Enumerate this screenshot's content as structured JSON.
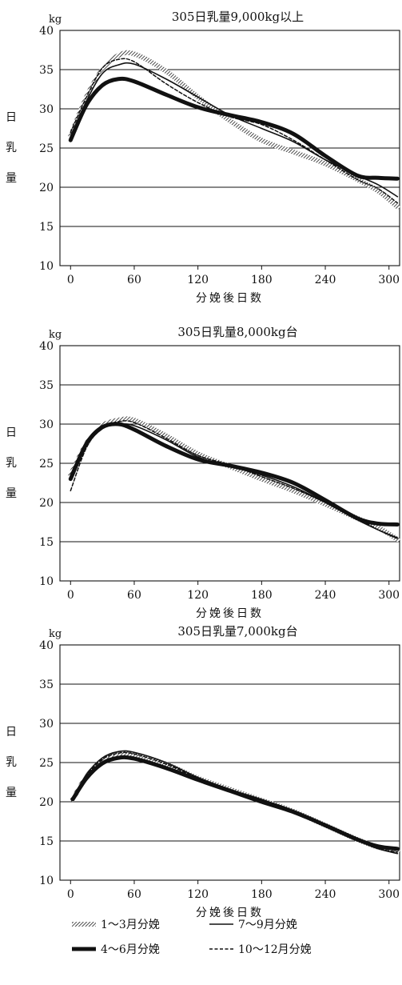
{
  "chart_data": [
    {
      "type": "line",
      "title": "305日乳量9,000kg以上",
      "unit": "kg",
      "ylabel": "日乳量",
      "xlabel": "分娩後日数",
      "x_unit": "日",
      "xlim": [
        -10,
        310
      ],
      "ylim": [
        10,
        40
      ],
      "x_ticks": [
        0,
        60,
        120,
        180,
        240,
        300
      ],
      "y_ticks": [
        10,
        15,
        20,
        25,
        30,
        35,
        40
      ],
      "grid": "horizontal",
      "series": [
        {
          "name": "1～3月分娩",
          "style": "hatched",
          "x": [
            0,
            15,
            30,
            45,
            60,
            90,
            120,
            150,
            180,
            210,
            240,
            270,
            290,
            308
          ],
          "y": [
            26.5,
            31.5,
            35.0,
            36.8,
            37.0,
            34.8,
            31.5,
            28.5,
            26.0,
            24.5,
            23.0,
            21.0,
            19.5,
            17.5
          ]
        },
        {
          "name": "4～6月分娩",
          "style": "thick",
          "x": [
            0,
            15,
            30,
            45,
            60,
            90,
            120,
            150,
            180,
            210,
            240,
            270,
            290,
            308
          ],
          "y": [
            26.0,
            30.5,
            33.0,
            33.8,
            33.5,
            31.8,
            30.2,
            29.2,
            28.3,
            26.8,
            24.0,
            21.5,
            21.2,
            21.1
          ]
        },
        {
          "name": "7～9月分娩",
          "style": "solid",
          "x": [
            0,
            15,
            30,
            45,
            60,
            90,
            120,
            150,
            180,
            210,
            240,
            270,
            290,
            308
          ],
          "y": [
            26.5,
            31.0,
            34.5,
            35.6,
            35.7,
            33.8,
            31.5,
            29.2,
            27.5,
            25.8,
            23.5,
            21.5,
            20.3,
            18.8
          ]
        },
        {
          "name": "10～12月分娩",
          "style": "dashed",
          "x": [
            0,
            15,
            30,
            45,
            60,
            90,
            120,
            150,
            180,
            210,
            240,
            270,
            290,
            308
          ],
          "y": [
            27.0,
            31.5,
            35.2,
            36.3,
            36.0,
            33.2,
            30.8,
            29.0,
            28.0,
            26.0,
            23.5,
            21.0,
            19.8,
            18.0
          ]
        }
      ]
    },
    {
      "type": "line",
      "title": "305日乳量8,000kg台",
      "unit": "kg",
      "ylabel": "日乳量",
      "xlabel": "分娩後日数",
      "x_unit": "日",
      "xlim": [
        -10,
        310
      ],
      "ylim": [
        10,
        40
      ],
      "x_ticks": [
        0,
        60,
        120,
        180,
        240,
        300
      ],
      "y_ticks": [
        10,
        15,
        20,
        25,
        30,
        35,
        40
      ],
      "grid": "horizontal",
      "series": [
        {
          "name": "1～3月分娩",
          "style": "hatched",
          "x": [
            0,
            15,
            30,
            45,
            60,
            90,
            120,
            150,
            180,
            210,
            240,
            270,
            290,
            308
          ],
          "y": [
            23.5,
            27.5,
            29.8,
            30.5,
            30.5,
            28.5,
            26.2,
            24.6,
            23.0,
            21.5,
            19.8,
            18.0,
            16.8,
            15.3
          ]
        },
        {
          "name": "4～6月分娩",
          "style": "thick",
          "x": [
            0,
            15,
            30,
            45,
            60,
            90,
            120,
            150,
            180,
            210,
            240,
            270,
            290,
            308
          ],
          "y": [
            23.0,
            27.5,
            29.6,
            30.0,
            29.3,
            27.2,
            25.5,
            24.7,
            23.8,
            22.5,
            20.3,
            18.0,
            17.3,
            17.2
          ]
        },
        {
          "name": "7～9月分娩",
          "style": "solid",
          "x": [
            0,
            15,
            30,
            45,
            60,
            90,
            120,
            150,
            180,
            210,
            240,
            270,
            290,
            308
          ],
          "y": [
            23.5,
            27.8,
            29.8,
            30.0,
            29.8,
            28.0,
            25.8,
            24.6,
            23.5,
            22.0,
            20.0,
            17.8,
            16.5,
            15.5
          ]
        },
        {
          "name": "10～12月分娩",
          "style": "dashed",
          "x": [
            0,
            15,
            30,
            45,
            60,
            90,
            120,
            150,
            180,
            210,
            240,
            270,
            290,
            308
          ],
          "y": [
            21.5,
            27.0,
            29.5,
            30.3,
            30.2,
            28.2,
            26.0,
            24.8,
            23.3,
            21.8,
            20.0,
            18.0,
            16.5,
            15.4
          ]
        }
      ]
    },
    {
      "type": "line",
      "title": "305日乳量7,000kg台",
      "unit": "kg",
      "ylabel": "日乳量",
      "xlabel": "分娩後日数",
      "x_unit": "日",
      "xlim": [
        -10,
        310
      ],
      "ylim": [
        10,
        40
      ],
      "x_ticks": [
        0,
        60,
        120,
        180,
        240,
        300
      ],
      "y_ticks": [
        10,
        15,
        20,
        25,
        30,
        35,
        40
      ],
      "grid": "horizontal",
      "series": [
        {
          "name": "1～3月分娩",
          "style": "hatched",
          "x": [
            2,
            15,
            30,
            45,
            60,
            90,
            120,
            150,
            180,
            210,
            240,
            270,
            290,
            308
          ],
          "y": [
            20.3,
            23.2,
            25.3,
            26.1,
            26.0,
            24.8,
            23.0,
            21.6,
            20.2,
            18.8,
            17.0,
            15.2,
            14.2,
            13.8
          ]
        },
        {
          "name": "4～6月分娩",
          "style": "thick",
          "x": [
            2,
            15,
            30,
            45,
            60,
            90,
            120,
            150,
            180,
            210,
            240,
            270,
            290,
            308
          ],
          "y": [
            20.3,
            23.0,
            24.9,
            25.6,
            25.5,
            24.3,
            22.8,
            21.4,
            20.0,
            18.7,
            17.0,
            15.2,
            14.3,
            14.0
          ]
        },
        {
          "name": "7～9月分娩",
          "style": "solid",
          "x": [
            2,
            15,
            30,
            45,
            60,
            90,
            120,
            150,
            180,
            210,
            240,
            270,
            290,
            308
          ],
          "y": [
            20.4,
            23.5,
            25.6,
            26.4,
            26.3,
            25.0,
            23.1,
            21.6,
            20.3,
            18.9,
            17.1,
            15.1,
            14.0,
            13.4
          ]
        },
        {
          "name": "10～12月分娩",
          "style": "dashed",
          "x": [
            2,
            15,
            30,
            45,
            60,
            90,
            120,
            150,
            180,
            210,
            240,
            270,
            290,
            308
          ],
          "y": [
            20.3,
            23.3,
            25.4,
            26.2,
            26.1,
            24.8,
            23.0,
            21.5,
            20.2,
            18.8,
            17.0,
            15.1,
            14.0,
            13.6
          ]
        }
      ]
    }
  ],
  "legend": [
    {
      "label": "1～3月分娩",
      "style": "hatched"
    },
    {
      "label": "7～9月分娩",
      "style": "solid"
    },
    {
      "label": "4～6月分娩",
      "style": "thick"
    },
    {
      "label": "10～12月分娩",
      "style": "dashed"
    }
  ],
  "colors": {
    "ink": "#111111",
    "grid": "#111111",
    "background": "#ffffff"
  }
}
